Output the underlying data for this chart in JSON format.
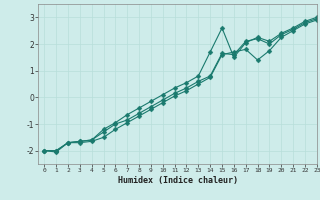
{
  "title": "",
  "xlabel": "Humidex (Indice chaleur)",
  "bg_color": "#ceecea",
  "grid_color": "#b8deda",
  "line_color": "#1a7a6e",
  "xlim": [
    -0.5,
    23
  ],
  "ylim": [
    -2.5,
    3.5
  ],
  "xticks": [
    0,
    1,
    2,
    3,
    4,
    5,
    6,
    7,
    8,
    9,
    10,
    11,
    12,
    13,
    14,
    15,
    16,
    17,
    18,
    19,
    20,
    21,
    22,
    23
  ],
  "yticks": [
    -2,
    -1,
    0,
    1,
    2,
    3
  ],
  "line1_x": [
    0,
    1,
    2,
    3,
    4,
    5,
    6,
    7,
    8,
    9,
    10,
    11,
    12,
    13,
    14,
    15,
    16,
    17,
    18,
    19,
    20,
    21,
    22,
    23
  ],
  "line1_y": [
    -2.0,
    -2.05,
    -1.7,
    -1.65,
    -1.6,
    -1.2,
    -0.95,
    -0.65,
    -0.4,
    -0.15,
    0.1,
    0.35,
    0.55,
    0.8,
    1.7,
    2.6,
    1.5,
    2.05,
    2.25,
    2.1,
    2.4,
    2.6,
    2.85,
    3.0
  ],
  "line2_x": [
    0,
    1,
    2,
    3,
    4,
    5,
    6,
    7,
    8,
    9,
    10,
    11,
    12,
    13,
    14,
    15,
    16,
    17,
    18,
    19,
    20,
    21,
    22,
    23
  ],
  "line2_y": [
    -2.0,
    -2.0,
    -1.7,
    -1.65,
    -1.6,
    -1.3,
    -1.0,
    -0.85,
    -0.6,
    -0.35,
    -0.1,
    0.15,
    0.35,
    0.6,
    0.8,
    1.65,
    1.6,
    2.1,
    2.2,
    2.0,
    2.35,
    2.55,
    2.8,
    2.95
  ],
  "line3_x": [
    0,
    1,
    2,
    3,
    4,
    5,
    6,
    7,
    8,
    9,
    10,
    11,
    12,
    13,
    14,
    15,
    16,
    17,
    18,
    19,
    20,
    21,
    22,
    23
  ],
  "line3_y": [
    -2.0,
    -2.0,
    -1.7,
    -1.7,
    -1.65,
    -1.5,
    -1.2,
    -0.95,
    -0.7,
    -0.45,
    -0.2,
    0.05,
    0.25,
    0.5,
    0.75,
    1.6,
    1.7,
    1.8,
    1.4,
    1.75,
    2.25,
    2.5,
    2.75,
    2.9
  ]
}
